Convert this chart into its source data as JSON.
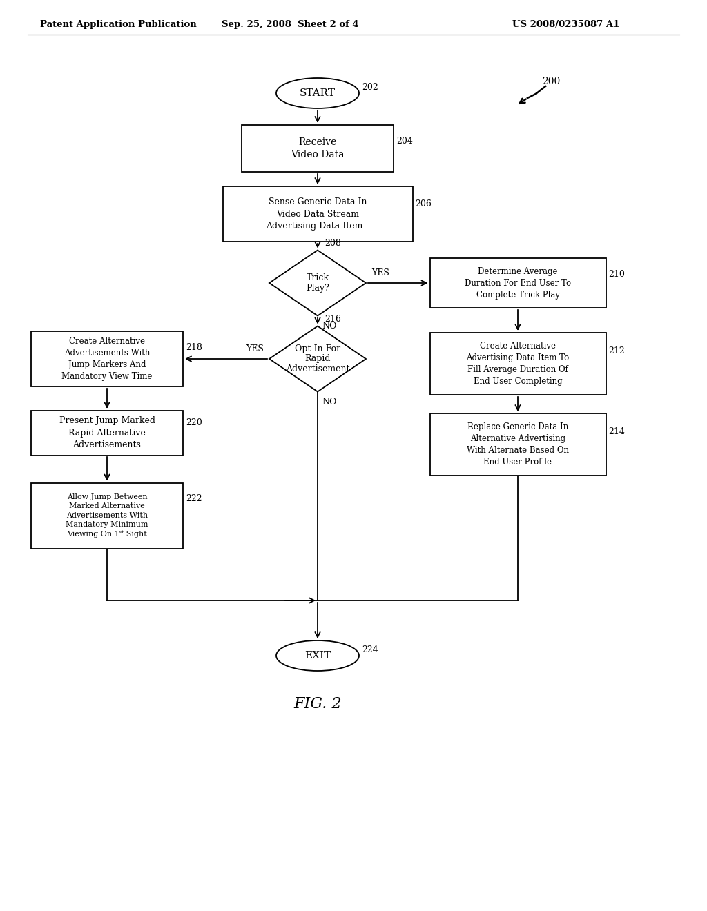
{
  "bg_color": "#ffffff",
  "header_left": "Patent Application Publication",
  "header_center": "Sep. 25, 2008  Sheet 2 of 4",
  "header_right": "US 2008/0235087 A1",
  "figure_label": "FIG. 2",
  "diagram_ref": "200"
}
